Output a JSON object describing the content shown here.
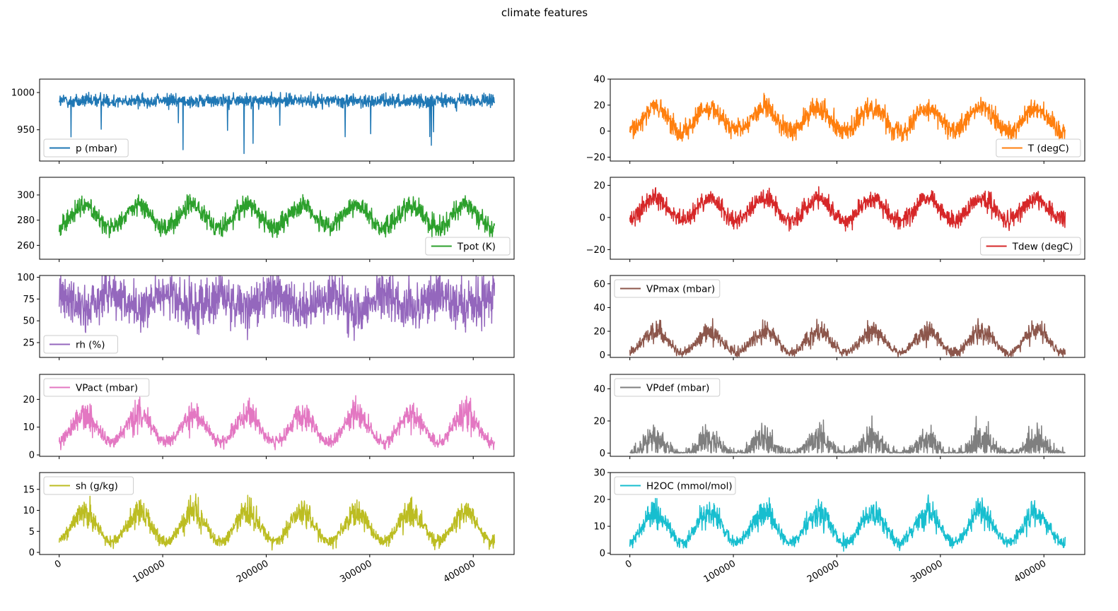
{
  "figure": {
    "title": "climate features"
  },
  "chart_data": [
    {
      "type": "line",
      "series": [
        {
          "name": "p (mbar)",
          "color": "#1f77b4"
        }
      ],
      "x_ticks": [
        "0",
        "100000",
        "200000",
        "300000",
        "400000"
      ],
      "xlim": [
        0,
        420551
      ],
      "ylim": [
        908,
        1018
      ],
      "y_ticks": [
        "950",
        "1000"
      ],
      "y_tick_values": [
        950,
        1000
      ],
      "legend": "lower-left",
      "model": {
        "base": 989,
        "amp": 0,
        "noise": 8,
        "spike": -1
      },
      "x_tick_labels_shown": false
    },
    {
      "type": "line",
      "series": [
        {
          "name": "T (degC)",
          "color": "#ff7f0e"
        }
      ],
      "x_ticks": [
        "0",
        "100000",
        "200000",
        "300000",
        "400000"
      ],
      "xlim": [
        0,
        420551
      ],
      "ylim": [
        -23,
        40
      ],
      "y_ticks": [
        "−20",
        "0",
        "20",
        "40"
      ],
      "y_tick_values": [
        -20,
        0,
        20,
        40
      ],
      "legend": "lower-right",
      "model": {
        "base": 9,
        "amp": 9,
        "noise": 7,
        "spike": 0
      },
      "x_tick_labels_shown": false
    },
    {
      "type": "line",
      "series": [
        {
          "name": "Tpot (K)",
          "color": "#2ca02c"
        }
      ],
      "x_ticks": [
        "0",
        "100000",
        "200000",
        "300000",
        "400000"
      ],
      "xlim": [
        0,
        420551
      ],
      "ylim": [
        249,
        314
      ],
      "y_ticks": [
        "260",
        "280",
        "300"
      ],
      "y_tick_values": [
        260,
        280,
        300
      ],
      "legend": "lower-right",
      "model": {
        "base": 283,
        "amp": 9,
        "noise": 7,
        "spike": 0
      },
      "x_tick_labels_shown": false
    },
    {
      "type": "line",
      "series": [
        {
          "name": "Tdew (degC)",
          "color": "#d62728"
        }
      ],
      "x_ticks": [
        "0",
        "100000",
        "200000",
        "300000",
        "400000"
      ],
      "xlim": [
        0,
        420551
      ],
      "ylim": [
        -26,
        25
      ],
      "y_ticks": [
        "−20",
        "0",
        "20"
      ],
      "y_tick_values": [
        -20,
        0,
        20
      ],
      "legend": "lower-right",
      "model": {
        "base": 5,
        "amp": 7,
        "noise": 5,
        "spike": 0
      },
      "x_tick_labels_shown": false
    },
    {
      "type": "line",
      "series": [
        {
          "name": "rh (%)",
          "color": "#9467bd"
        }
      ],
      "x_ticks": [
        "0",
        "100000",
        "200000",
        "300000",
        "400000"
      ],
      "xlim": [
        0,
        420551
      ],
      "ylim": [
        8,
        102
      ],
      "y_ticks": [
        "25",
        "50",
        "75",
        "100"
      ],
      "y_tick_values": [
        25,
        50,
        75,
        100
      ],
      "legend": "lower-left",
      "model": {
        "base": 72,
        "amp": -8,
        "noise": 24,
        "spike": 0
      },
      "x_tick_labels_shown": false
    },
    {
      "type": "line",
      "series": [
        {
          "name": "VPmax (mbar)",
          "color": "#8c564b"
        }
      ],
      "x_ticks": [
        "0",
        "100000",
        "200000",
        "300000",
        "400000"
      ],
      "xlim": [
        0,
        420551
      ],
      "ylim": [
        -2,
        67
      ],
      "y_ticks": [
        "0",
        "20",
        "40",
        "60"
      ],
      "y_tick_values": [
        0,
        20,
        40,
        60
      ],
      "legend": "upper-left",
      "model": {
        "base": 11,
        "amp": 9,
        "noise": 6,
        "spike": 1
      },
      "x_tick_labels_shown": false
    },
    {
      "type": "line",
      "series": [
        {
          "name": "VPact (mbar)",
          "color": "#e377c2"
        }
      ],
      "x_ticks": [
        "0",
        "100000",
        "200000",
        "300000",
        "400000"
      ],
      "xlim": [
        0,
        420551
      ],
      "ylim": [
        -0.5,
        29
      ],
      "y_ticks": [
        "0",
        "10",
        "20"
      ],
      "y_tick_values": [
        0,
        10,
        20
      ],
      "legend": "upper-left",
      "model": {
        "base": 9.5,
        "amp": 5,
        "noise": 3.5,
        "spike": 1
      },
      "x_tick_labels_shown": false
    },
    {
      "type": "line",
      "series": [
        {
          "name": "VPdef (mbar)",
          "color": "#7f7f7f"
        }
      ],
      "x_ticks": [
        "0",
        "100000",
        "200000",
        "300000",
        "400000"
      ],
      "xlim": [
        0,
        420551
      ],
      "ylim": [
        -2,
        49
      ],
      "y_ticks": [
        "0",
        "20",
        "40"
      ],
      "y_tick_values": [
        0,
        20,
        40
      ],
      "legend": "upper-left",
      "model": {
        "base": 3,
        "amp": 5,
        "noise": 7,
        "spike": 1,
        "floor": 0
      },
      "x_tick_labels_shown": false
    },
    {
      "type": "line",
      "series": [
        {
          "name": "sh (g/kg)",
          "color": "#bcbd22"
        }
      ],
      "x_ticks": [
        "0",
        "100000",
        "200000",
        "300000",
        "400000"
      ],
      "xlim": [
        0,
        420551
      ],
      "ylim": [
        -0.5,
        19
      ],
      "y_ticks": [
        "0",
        "5",
        "10",
        "15"
      ],
      "y_tick_values": [
        0,
        5,
        10,
        15
      ],
      "legend": "upper-left",
      "model": {
        "base": 6,
        "amp": 3.5,
        "noise": 2.2,
        "spike": 1
      },
      "x_tick_labels_shown": true
    },
    {
      "type": "line",
      "series": [
        {
          "name": "H2OC (mmol/mol)",
          "color": "#17becf"
        }
      ],
      "x_ticks": [
        "0",
        "100000",
        "200000",
        "300000",
        "400000"
      ],
      "xlim": [
        0,
        420551
      ],
      "ylim": [
        -0.5,
        30
      ],
      "y_ticks": [
        "0",
        "10",
        "20",
        "30"
      ],
      "y_tick_values": [
        0,
        10,
        20,
        30
      ],
      "legend": "upper-left",
      "model": {
        "base": 9.5,
        "amp": 5.5,
        "noise": 3.5,
        "spike": 1
      },
      "x_tick_labels_shown": true
    }
  ]
}
